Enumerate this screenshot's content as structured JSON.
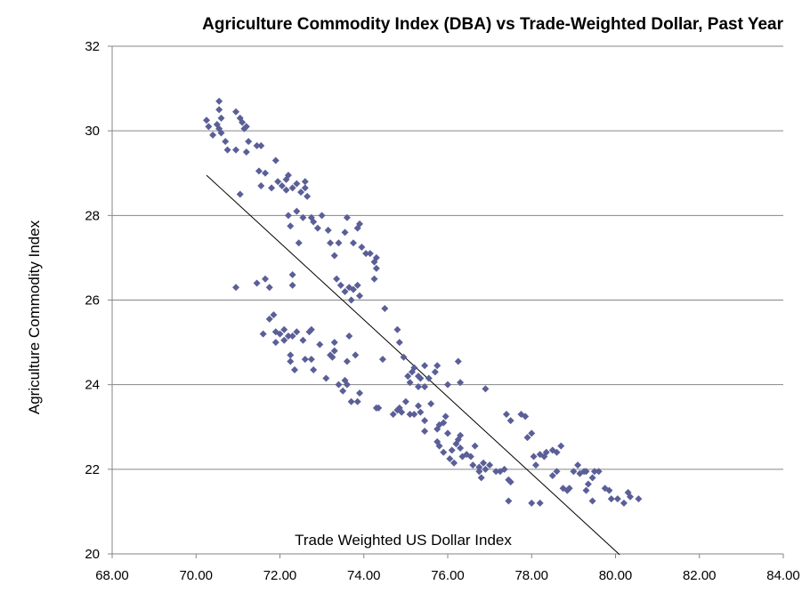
{
  "chart_data": {
    "type": "scatter",
    "title": "Agriculture Commodity Index (DBA) vs Trade-Weighted Dollar, Past Year",
    "xlabel": "Trade Weighted US Dollar Index",
    "ylabel": "Agriculture Commodity Index",
    "xlim": [
      68,
      84
    ],
    "ylim": [
      20,
      32
    ],
    "x_ticks": [
      "68.00",
      "70.00",
      "72.00",
      "74.00",
      "76.00",
      "78.00",
      "80.00",
      "82.00",
      "84.00"
    ],
    "y_ticks": [
      "20",
      "22",
      "24",
      "26",
      "28",
      "30",
      "32"
    ],
    "grid": "horizontal",
    "legend": "none",
    "marker": "diamond",
    "marker_color": "#5B5F97",
    "trendline": {
      "type": "linear",
      "from": [
        70.25,
        28.95
      ],
      "to": [
        80.1,
        19.98
      ],
      "color": "#000000"
    },
    "points": [
      [
        70.25,
        30.25
      ],
      [
        70.3,
        30.1
      ],
      [
        70.4,
        29.9
      ],
      [
        70.55,
        30.7
      ],
      [
        70.55,
        30.5
      ],
      [
        70.6,
        30.3
      ],
      [
        70.55,
        30.05
      ],
      [
        70.6,
        29.95
      ],
      [
        70.7,
        29.75
      ],
      [
        70.75,
        29.55
      ],
      [
        70.5,
        30.15
      ],
      [
        70.95,
        30.45
      ],
      [
        71.05,
        30.3
      ],
      [
        71.1,
        30.2
      ],
      [
        71.15,
        30.05
      ],
      [
        71.2,
        30.1
      ],
      [
        71.25,
        29.75
      ],
      [
        71.2,
        29.5
      ],
      [
        71.45,
        29.65
      ],
      [
        71.55,
        29.65
      ],
      [
        70.95,
        29.55
      ],
      [
        71.05,
        28.5
      ],
      [
        71.5,
        29.05
      ],
      [
        71.65,
        29.0
      ],
      [
        71.9,
        29.3
      ],
      [
        71.55,
        28.7
      ],
      [
        71.8,
        28.65
      ],
      [
        71.95,
        28.8
      ],
      [
        72.05,
        28.7
      ],
      [
        72.15,
        28.6
      ],
      [
        72.15,
        28.85
      ],
      [
        72.2,
        28.95
      ],
      [
        72.3,
        28.65
      ],
      [
        72.4,
        28.75
      ],
      [
        72.5,
        28.55
      ],
      [
        72.6,
        28.8
      ],
      [
        72.6,
        28.65
      ],
      [
        72.65,
        28.45
      ],
      [
        72.2,
        28.0
      ],
      [
        72.25,
        27.75
      ],
      [
        72.4,
        28.1
      ],
      [
        72.55,
        27.95
      ],
      [
        72.75,
        27.95
      ],
      [
        72.8,
        27.85
      ],
      [
        72.9,
        27.7
      ],
      [
        73.0,
        28.0
      ],
      [
        73.15,
        27.65
      ],
      [
        72.45,
        27.35
      ],
      [
        73.2,
        27.35
      ],
      [
        73.3,
        27.05
      ],
      [
        73.4,
        27.35
      ],
      [
        73.55,
        27.6
      ],
      [
        73.6,
        27.95
      ],
      [
        73.75,
        27.35
      ],
      [
        73.85,
        27.7
      ],
      [
        73.9,
        27.8
      ],
      [
        73.95,
        27.25
      ],
      [
        74.05,
        27.1
      ],
      [
        74.15,
        27.1
      ],
      [
        74.25,
        26.9
      ],
      [
        74.3,
        27.0
      ],
      [
        74.3,
        26.75
      ],
      [
        74.25,
        26.5
      ],
      [
        72.3,
        26.6
      ],
      [
        72.3,
        26.35
      ],
      [
        73.35,
        26.5
      ],
      [
        73.45,
        26.35
      ],
      [
        73.55,
        26.2
      ],
      [
        73.65,
        26.3
      ],
      [
        73.75,
        26.25
      ],
      [
        73.85,
        26.35
      ],
      [
        73.7,
        26.0
      ],
      [
        73.9,
        26.1
      ],
      [
        74.5,
        25.8
      ],
      [
        70.95,
        26.3
      ],
      [
        71.45,
        26.4
      ],
      [
        71.65,
        26.5
      ],
      [
        71.75,
        26.3
      ],
      [
        71.6,
        25.2
      ],
      [
        71.75,
        25.55
      ],
      [
        71.85,
        25.65
      ],
      [
        71.9,
        25.25
      ],
      [
        72.0,
        25.2
      ],
      [
        72.1,
        25.05
      ],
      [
        72.1,
        25.3
      ],
      [
        72.2,
        25.15
      ],
      [
        72.3,
        25.15
      ],
      [
        72.4,
        25.25
      ],
      [
        72.55,
        25.05
      ],
      [
        72.7,
        25.25
      ],
      [
        72.75,
        25.3
      ],
      [
        71.9,
        25.0
      ],
      [
        72.25,
        24.7
      ],
      [
        72.25,
        24.55
      ],
      [
        72.35,
        24.35
      ],
      [
        72.6,
        24.6
      ],
      [
        72.75,
        24.6
      ],
      [
        72.8,
        24.35
      ],
      [
        72.95,
        24.95
      ],
      [
        73.1,
        24.15
      ],
      [
        73.2,
        24.7
      ],
      [
        73.25,
        24.65
      ],
      [
        73.3,
        24.8
      ],
      [
        73.3,
        25.0
      ],
      [
        73.4,
        24.0
      ],
      [
        73.55,
        24.1
      ],
      [
        73.6,
        24.55
      ],
      [
        73.6,
        24.0
      ],
      [
        73.65,
        25.15
      ],
      [
        73.8,
        24.7
      ],
      [
        73.5,
        23.85
      ],
      [
        73.7,
        23.6
      ],
      [
        73.85,
        23.6
      ],
      [
        73.9,
        23.8
      ],
      [
        74.3,
        23.45
      ],
      [
        74.35,
        23.45
      ],
      [
        74.45,
        24.6
      ],
      [
        74.8,
        25.3
      ],
      [
        74.85,
        25.0
      ],
      [
        74.95,
        24.65
      ],
      [
        75.05,
        24.2
      ],
      [
        75.15,
        24.3
      ],
      [
        75.2,
        24.4
      ],
      [
        75.3,
        24.2
      ],
      [
        75.35,
        24.15
      ],
      [
        75.45,
        24.45
      ],
      [
        75.55,
        24.15
      ],
      [
        75.7,
        24.3
      ],
      [
        75.75,
        24.45
      ],
      [
        75.3,
        23.95
      ],
      [
        75.45,
        23.95
      ],
      [
        75.1,
        24.05
      ],
      [
        74.7,
        23.3
      ],
      [
        74.8,
        23.4
      ],
      [
        74.85,
        23.45
      ],
      [
        74.9,
        23.35
      ],
      [
        75.0,
        23.6
      ],
      [
        75.1,
        23.3
      ],
      [
        75.2,
        23.3
      ],
      [
        75.3,
        23.5
      ],
      [
        75.35,
        23.35
      ],
      [
        75.45,
        23.15
      ],
      [
        75.45,
        22.9
      ],
      [
        75.6,
        23.55
      ],
      [
        75.75,
        22.95
      ],
      [
        75.8,
        23.05
      ],
      [
        75.9,
        23.1
      ],
      [
        75.95,
        23.25
      ],
      [
        76.0,
        22.85
      ],
      [
        75.75,
        22.65
      ],
      [
        75.8,
        22.55
      ],
      [
        75.9,
        22.4
      ],
      [
        76.05,
        22.25
      ],
      [
        76.1,
        22.45
      ],
      [
        76.2,
        22.6
      ],
      [
        76.25,
        22.7
      ],
      [
        76.3,
        22.8
      ],
      [
        76.15,
        22.15
      ],
      [
        76.3,
        22.5
      ],
      [
        76.35,
        22.3
      ],
      [
        76.45,
        22.35
      ],
      [
        76.55,
        22.3
      ],
      [
        76.6,
        22.1
      ],
      [
        76.65,
        22.55
      ],
      [
        76.75,
        22.05
      ],
      [
        76.75,
        21.95
      ],
      [
        76.85,
        22.15
      ],
      [
        76.8,
        21.8
      ],
      [
        76.9,
        22.0
      ],
      [
        77.0,
        22.1
      ],
      [
        77.15,
        21.95
      ],
      [
        77.25,
        21.95
      ],
      [
        77.35,
        22.0
      ],
      [
        77.45,
        21.75
      ],
      [
        77.5,
        21.7
      ],
      [
        76.0,
        24.0
      ],
      [
        76.3,
        24.05
      ],
      [
        76.25,
        24.55
      ],
      [
        76.9,
        23.9
      ],
      [
        77.4,
        23.3
      ],
      [
        77.5,
        23.15
      ],
      [
        77.75,
        23.3
      ],
      [
        77.85,
        23.25
      ],
      [
        77.9,
        22.75
      ],
      [
        78.0,
        22.85
      ],
      [
        78.05,
        22.3
      ],
      [
        78.1,
        22.1
      ],
      [
        78.2,
        22.35
      ],
      [
        78.3,
        22.3
      ],
      [
        78.35,
        22.4
      ],
      [
        78.5,
        22.45
      ],
      [
        78.6,
        22.4
      ],
      [
        78.7,
        22.55
      ],
      [
        78.5,
        21.85
      ],
      [
        78.6,
        21.95
      ],
      [
        78.75,
        21.55
      ],
      [
        78.85,
        21.5
      ],
      [
        79.0,
        21.95
      ],
      [
        79.1,
        22.1
      ],
      [
        79.15,
        21.9
      ],
      [
        79.25,
        21.95
      ],
      [
        79.3,
        21.95
      ],
      [
        79.35,
        21.65
      ],
      [
        79.45,
        21.8
      ],
      [
        79.5,
        21.95
      ],
      [
        79.6,
        21.95
      ],
      [
        79.3,
        21.5
      ],
      [
        79.45,
        21.25
      ],
      [
        79.75,
        21.55
      ],
      [
        79.85,
        21.5
      ],
      [
        80.05,
        21.3
      ],
      [
        80.35,
        21.35
      ],
      [
        80.55,
        21.3
      ],
      [
        77.45,
        21.25
      ],
      [
        78.0,
        21.2
      ],
      [
        78.2,
        21.2
      ],
      [
        78.9,
        21.55
      ],
      [
        79.9,
        21.3
      ],
      [
        80.3,
        21.45
      ],
      [
        80.2,
        21.2
      ]
    ]
  }
}
